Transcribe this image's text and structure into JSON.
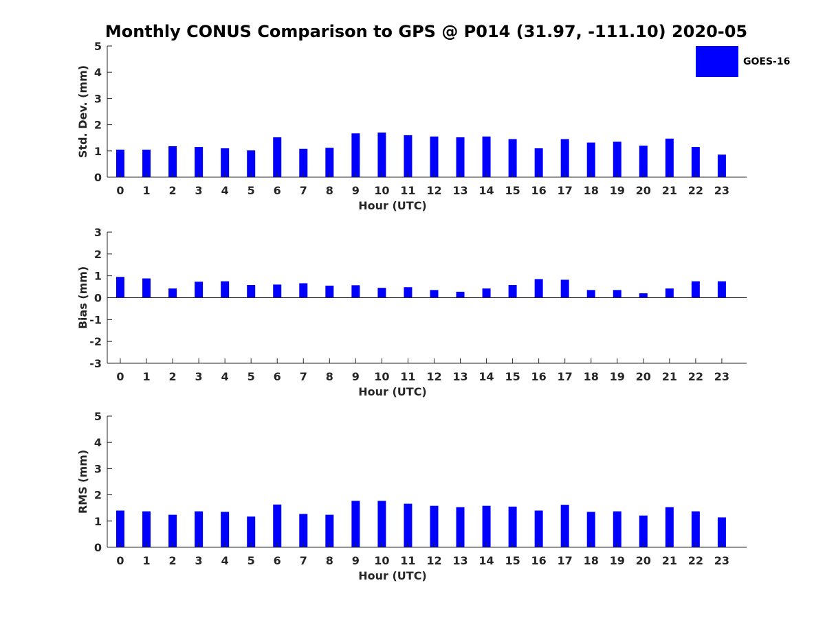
{
  "chart_data": {
    "type": "bar",
    "title": "Monthly CONUS Comparison to GPS @ P014 (31.97, -111.10) 2020-05",
    "legend": {
      "entries": [
        "GOES-16"
      ],
      "placement": "top-right"
    },
    "colors": {
      "bar": "#0000ff",
      "axis": "#262626",
      "title": "#000000"
    },
    "categories": [
      "0",
      "1",
      "2",
      "3",
      "4",
      "5",
      "6",
      "7",
      "8",
      "9",
      "10",
      "11",
      "12",
      "13",
      "14",
      "15",
      "16",
      "17",
      "18",
      "19",
      "20",
      "21",
      "22",
      "23"
    ],
    "panels": [
      {
        "ylabel": "Std. Dev. (mm)",
        "xlabel": "Hour (UTC)",
        "ylim": [
          0,
          5
        ],
        "yticks": [
          "0",
          "1",
          "2",
          "3",
          "4",
          "5"
        ],
        "series": [
          {
            "name": "GOES-16",
            "values": [
              1.05,
              1.05,
              1.18,
              1.15,
              1.1,
              1.02,
              1.52,
              1.08,
              1.12,
              1.67,
              1.7,
              1.6,
              1.55,
              1.52,
              1.55,
              1.45,
              1.1,
              1.45,
              1.32,
              1.35,
              1.2,
              1.47,
              1.15,
              0.86
            ]
          }
        ]
      },
      {
        "ylabel": "Bias (mm)",
        "xlabel": "Hour (UTC)",
        "ylim": [
          -3,
          3
        ],
        "yticks": [
          "-3",
          "-2",
          "-1",
          "0",
          "1",
          "2",
          "3"
        ],
        "series": [
          {
            "name": "GOES-16",
            "values": [
              0.95,
              0.88,
              0.42,
              0.73,
              0.75,
              0.58,
              0.6,
              0.66,
              0.55,
              0.57,
              0.45,
              0.48,
              0.35,
              0.27,
              0.42,
              0.58,
              0.85,
              0.82,
              0.35,
              0.35,
              0.2,
              0.42,
              0.75,
              0.75
            ]
          }
        ]
      },
      {
        "ylabel": "RMS (mm)",
        "xlabel": "Hour (UTC)",
        "ylim": [
          0,
          5
        ],
        "yticks": [
          "0",
          "1",
          "2",
          "3",
          "4",
          "5"
        ],
        "series": [
          {
            "name": "GOES-16",
            "values": [
              1.4,
              1.37,
              1.24,
              1.37,
              1.35,
              1.17,
              1.63,
              1.27,
              1.24,
              1.77,
              1.77,
              1.66,
              1.58,
              1.53,
              1.58,
              1.55,
              1.4,
              1.62,
              1.35,
              1.37,
              1.21,
              1.53,
              1.37,
              1.14
            ]
          }
        ]
      }
    ]
  }
}
